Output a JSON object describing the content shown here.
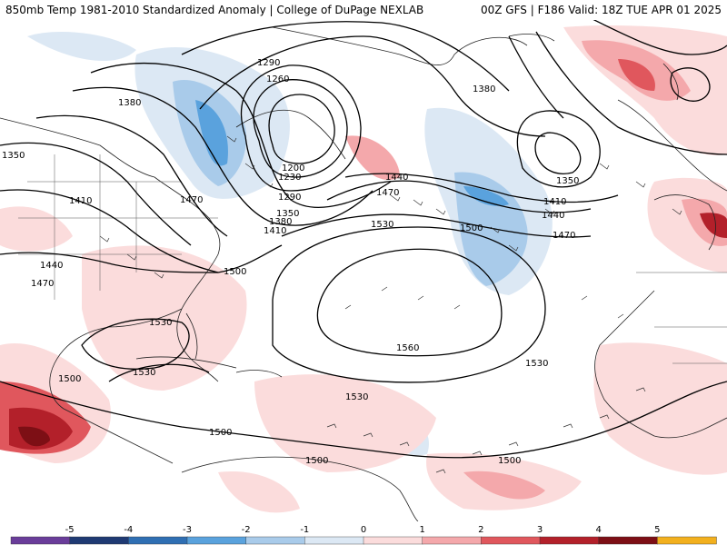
{
  "header": {
    "left_title": "850mb Temp 1981-2010 Standardized Anomaly | College of DuPage NEXLAB",
    "right_title": "00Z GFS | F186 Valid: 18Z TUE APR 01 2025"
  },
  "colors": {
    "map_background": "#ffffff",
    "contour_line": "#000000",
    "coastline": "#222222",
    "anomaly_pos_1": "#fbdcdc",
    "anomaly_pos_2": "#f4a8ab",
    "anomaly_pos_3": "#e0575d",
    "anomaly_pos_4": "#b3202a",
    "anomaly_pos_5": "#7d0f15",
    "anomaly_neg_1": "#dce8f4",
    "anomaly_neg_2": "#a9cbea",
    "anomaly_neg_3": "#5aa2dd"
  },
  "contour_labels": [
    "1200",
    "1230",
    "1260",
    "1290",
    "1290",
    "1350",
    "1350",
    "1350",
    "1380",
    "1380",
    "1380",
    "1410",
    "1410",
    "1410",
    "1440",
    "1440",
    "1440",
    "1470",
    "1470",
    "1470",
    "1470",
    "1500",
    "1500",
    "1500",
    "1500",
    "1500",
    "1530",
    "1530",
    "1530",
    "1530",
    "1530",
    "1560"
  ],
  "colorbar": {
    "tick_labels": [
      "-5",
      "-4",
      "-3",
      "-2",
      "-1",
      "0",
      "1",
      "2",
      "3",
      "4",
      "5"
    ],
    "segments": [
      "#6a3d9a",
      "#1f3a73",
      "#2f6fb3",
      "#5aa2dd",
      "#a9cbea",
      "#dce8f4",
      "#fbdcdc",
      "#f4a8ab",
      "#e0575d",
      "#b3202a",
      "#7d0f15",
      "#f2b01e"
    ]
  }
}
